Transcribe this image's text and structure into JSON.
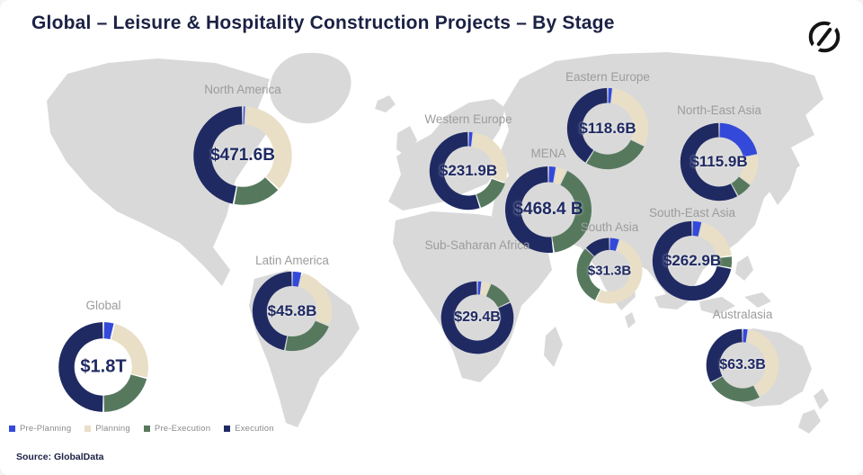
{
  "header": {
    "title": "Global – Leisure & Hospitality Construction Projects – By Stage"
  },
  "source": "Source: GlobalData",
  "chart_data": {
    "type": "pie",
    "subtype": "donut-charts-over-world-map",
    "title": "Global – Leisure & Hospitality Construction Projects – By Stage",
    "stages": [
      "Pre-Planning",
      "Planning",
      "Pre-Execution",
      "Execution"
    ],
    "colors": {
      "pre_planning": "#3349d9",
      "planning": "#e9dfc6",
      "pre_execution": "#56795e",
      "execution": "#1f2a63",
      "map": "#d9d9d9"
    },
    "legend_position": "bottom-left",
    "legend": [
      {
        "label": "Pre-Planning",
        "color": "#3349d9"
      },
      {
        "label": "Planning",
        "color": "#e9dfc6"
      },
      {
        "label": "Pre-Execution",
        "color": "#56795e"
      },
      {
        "label": "Execution",
        "color": "#1f2a63"
      }
    ],
    "regions": [
      {
        "name": "Global",
        "value": "$1.8T",
        "shares_pct": {
          "pre_planning": 4,
          "planning": 25,
          "pre_execution": 21,
          "execution": 50
        }
      },
      {
        "name": "North America",
        "value": "$471.6B",
        "shares_pct": {
          "pre_planning": 1,
          "planning": 36,
          "pre_execution": 16,
          "execution": 47
        }
      },
      {
        "name": "Latin America",
        "value": "$45.8B",
        "shares_pct": {
          "pre_planning": 4,
          "planning": 27,
          "pre_execution": 22,
          "execution": 47
        }
      },
      {
        "name": "Western Europe",
        "value": "$231.9B",
        "shares_pct": {
          "pre_planning": 2,
          "planning": 28,
          "pre_execution": 15,
          "execution": 55
        }
      },
      {
        "name": "Eastern Europe",
        "value": "$118.6B",
        "shares_pct": {
          "pre_planning": 2,
          "planning": 30,
          "pre_execution": 27,
          "execution": 41
        }
      },
      {
        "name": "MENA",
        "value": "$468.4 B",
        "shares_pct": {
          "pre_planning": 3,
          "planning": 4,
          "pre_execution": 41,
          "execution": 52
        }
      },
      {
        "name": "Sub-Saharan Africa",
        "value": "$29.4B",
        "shares_pct": {
          "pre_planning": 2,
          "planning": 4,
          "pre_execution": 12,
          "execution": 82
        }
      },
      {
        "name": "South Asia",
        "value": "$31.3B",
        "shares_pct": {
          "pre_planning": 5,
          "planning": 52,
          "pre_execution": 30,
          "execution": 13
        }
      },
      {
        "name": "North-East Asia",
        "value": "$115.9B",
        "shares_pct": {
          "pre_planning": 22,
          "planning": 13,
          "pre_execution": 7,
          "execution": 58
        }
      },
      {
        "name": "South-East Asia",
        "value": "$262.9B",
        "shares_pct": {
          "pre_planning": 4,
          "planning": 19,
          "pre_execution": 5,
          "execution": 72
        }
      },
      {
        "name": "Australasia",
        "value": "$63.3B",
        "shares_pct": {
          "pre_planning": 2.5,
          "planning": 39.5,
          "pre_execution": 25,
          "execution": 33
        }
      }
    ]
  }
}
